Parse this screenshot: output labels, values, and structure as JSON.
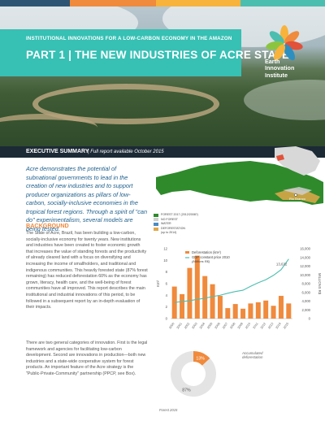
{
  "colors": {
    "teal": "#37c0b4",
    "navy": "#1c2a36",
    "orange": "#f08a3c",
    "line": "#4cbeb0",
    "strip": [
      "#2d5573",
      "#f08a3c",
      "#f7b33b",
      "#4cbeb0"
    ]
  },
  "header": {
    "kicker": "INSTITUTIONAL INNOVATIONS FOR A LOW-CARBON ECONOMY IN THE AMAZON",
    "title": "PART 1 | THE NEW INDUSTRIES OF ACRE STATE"
  },
  "logo": {
    "line1": "Earth",
    "line2": "Innovation",
    "line3": "Institute",
    "icon": "eii-sunburst-logo"
  },
  "exec": {
    "title": "EXECUTIVE SUMMARY",
    "subtitle": "Full report available October 2015"
  },
  "intro": "Acre demonstrates the potential of subnational governments to lead in the creation of new industries and to support producer organizations as pillars of low-carbon, socially-inclusive economies in the tropical forest regions. Through a spirit of \"can do\" experimentalism, several models are being tested.",
  "background": {
    "heading": "BACKGROUND",
    "p1": "The State of Acre, Brazil, has been building a low-carbon, socially-inclusive economy for twenty years. New institutions and industries have been created to foster economic growth that increases the value of standing forests and the productivity of already cleared land with a focus on diversifying and increasing the income of smallholders, and traditional and indigenous communities. This heavily forested state (87% forest remaining) has reduced deforestation 60% as the economy has grown, literacy, health care, and the well-being of forest communities have all improved. This report describes the main institutional and industrial innovations of this period, to be followed in a subsequent report by an in-depth evaluation of their impacts.",
    "p2": "There are two general categories of innovation. First is the legal framework and agencies for facilitating low-carbon development. Second are innovations in production—both new industries and a state-wide cooperative system for forest products. An important feature of the Acre strategy is the \"Public-Private-Community\" partnership (PPCP, see Box)."
  },
  "map": {
    "city_label": "Rio Branco",
    "legend": [
      {
        "label": "FOREST 2017 (2012/2008?)",
        "color": "#2f8a2c"
      },
      {
        "label": "NO FOREST",
        "color": "#cfcfcf"
      },
      {
        "label": "WATER",
        "color": "#4a8cc4"
      },
      {
        "label": "DEFORESTATION",
        "color": "#e0a84a"
      },
      {
        "label": "(up to 2014)",
        "color": ""
      }
    ]
  },
  "chart_data": [
    {
      "type": "bar",
      "categories": [
        "2000",
        "2001",
        "2002",
        "2003",
        "2004",
        "2005",
        "2006",
        "2007",
        "2008",
        "2009",
        "2010",
        "2011",
        "2012",
        "2013",
        "2014",
        "2015"
      ],
      "series": [
        {
          "name": "Deforestation (km²)",
          "axis": "left",
          "kind": "bar",
          "values": [
            5.5,
            4.2,
            8.7,
            10.8,
            7.3,
            5.9,
            3.9,
            1.8,
            2.5,
            1.7,
            2.6,
            2.8,
            3.1,
            2.2,
            3.9,
            2.6
          ]
        },
        {
          "name": "GDP constant price 2010 (Millions R$)",
          "axis": "right",
          "kind": "line",
          "values": [
            3700,
            3900,
            4100,
            4400,
            4650,
            5050,
            5350,
            5800,
            6200,
            6500,
            7400,
            8200,
            8900,
            9900,
            11200,
            13632
          ]
        }
      ],
      "annotation": "13,632",
      "ylabel": "Km²",
      "y2label": "MILLIONS R$",
      "ylim": [
        0,
        12
      ],
      "y2lim": [
        0,
        16000
      ],
      "yticks": [
        "0",
        "2",
        "4",
        "6",
        "8",
        "10",
        "12"
      ],
      "y2ticks": [
        "0",
        "2,000",
        "4,000",
        "6,000",
        "8,000",
        "10,000",
        "12,000",
        "14,000",
        "16,000"
      ]
    },
    {
      "type": "pie",
      "categories": [
        "Accumulated deforestation",
        "Forest 2015"
      ],
      "values": [
        13,
        87
      ],
      "labels": [
        "13%",
        "87%"
      ],
      "colors": [
        "#f08a3c",
        "#e4e4e4"
      ]
    }
  ]
}
